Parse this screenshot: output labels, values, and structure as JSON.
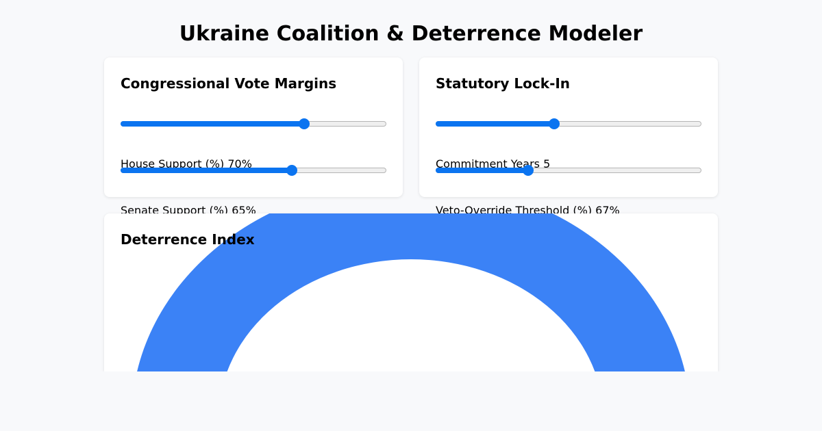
{
  "header": {
    "title": "Ukraine Coalition & Deterrence Modeler"
  },
  "votes": {
    "title": "Congressional Vote Margins",
    "house": {
      "label": "House Support (%)",
      "value_text": "70%",
      "value": 70,
      "min": 0,
      "max": 100
    },
    "senate": {
      "label": "Senate Support (%)",
      "value_text": "65%",
      "value": 65,
      "min": 0,
      "max": 100
    }
  },
  "lockin": {
    "title": "Statutory Lock-In",
    "years": {
      "label": "Commitment Years",
      "value_text": "5",
      "value": 5,
      "min": 1,
      "max": 10
    },
    "veto": {
      "label": "Veto-Override Threshold (%)",
      "value_text": "67%",
      "value": 67,
      "min": 50,
      "max": 100
    }
  },
  "deterrence": {
    "title": "Deterrence Index",
    "gauge_color": "#3b82f6"
  },
  "colors": {
    "accent": "#0b74f0",
    "page_bg": "#f8f9fb"
  }
}
